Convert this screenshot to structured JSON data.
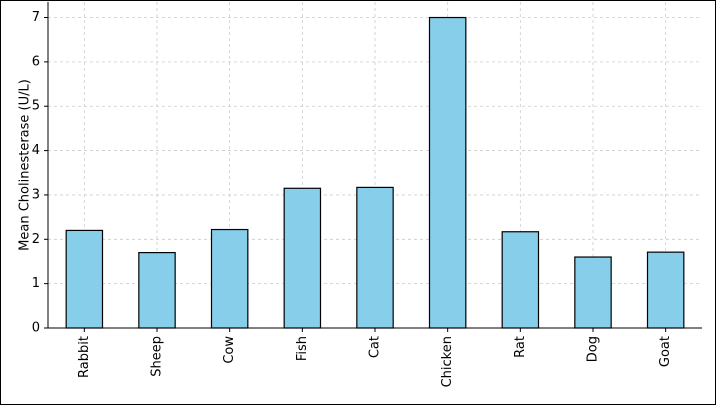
{
  "chart_data": {
    "type": "bar",
    "ylabel": "Mean Cholinesterase (U/L)",
    "categories": [
      "Rabbit",
      "Sheep",
      "Cow",
      "Fish",
      "Cat",
      "Chicken",
      "Rat",
      "Dog",
      "Goat"
    ],
    "values": [
      2.2,
      1.7,
      2.22,
      3.15,
      3.17,
      7.0,
      2.17,
      1.6,
      1.71
    ],
    "color": "#87ceeb",
    "edgecolor": "#000000",
    "ylim": [
      0,
      7.35
    ],
    "yticks": [
      0,
      1,
      2,
      3,
      4,
      5,
      6,
      7
    ],
    "grid": true
  }
}
